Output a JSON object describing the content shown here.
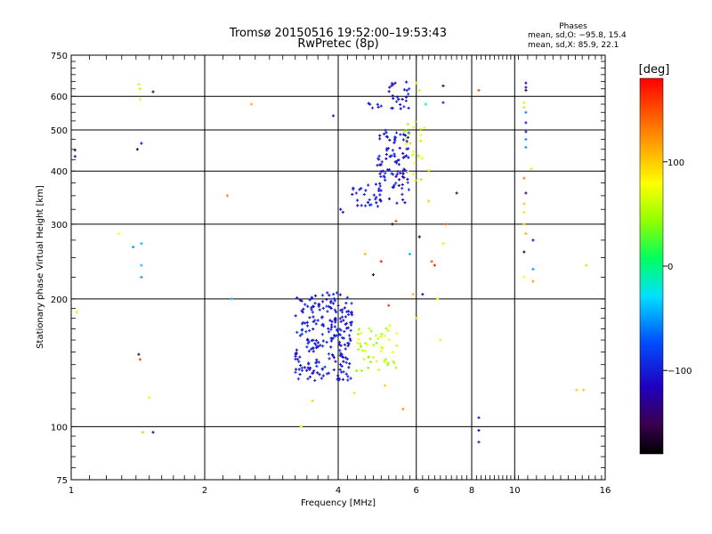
{
  "chart_data": {
    "type": "scatter",
    "title": "Tromsø 20150516 19:52:00–19:53:43",
    "subtitle": "RwPretec (8p)",
    "xlabel": "Frequency [MHz]",
    "ylabel": "Stationary phase Virtual Height [km]",
    "x_scale": "log",
    "y_scale": "log",
    "xlim": [
      1,
      16
    ],
    "ylim": [
      75,
      750
    ],
    "x_ticks": [
      "1",
      "2",
      "4",
      "6",
      "8",
      "10",
      "16"
    ],
    "y_ticks": [
      "75",
      "100",
      "200",
      "300",
      "400",
      "500",
      "600",
      "750"
    ],
    "grid": true,
    "stats": {
      "heading": "Phases",
      "line_o": "mean, sd,O: −95.8, 15.4",
      "line_x": "mean, sd,X:  85.9, 22.1"
    },
    "colorbar": {
      "label": "[deg]",
      "ticks": [
        "100",
        "0",
        "−100"
      ],
      "range": [
        -180,
        180
      ]
    },
    "clusters": [
      {
        "x": [
          3.2,
          4.3
        ],
        "y": [
          128,
          205
        ],
        "phase": [
          -120,
          -85
        ],
        "n": 230
      },
      {
        "x": [
          3.7,
          4.0
        ],
        "y": [
          190,
          210
        ],
        "phase": [
          -110,
          -90
        ],
        "n": 10
      },
      {
        "x": [
          4.4,
          5.5
        ],
        "y": [
          135,
          175
        ],
        "phase": [
          40,
          80
        ],
        "n": 50
      },
      {
        "x": [
          4.9,
          5.8
        ],
        "y": [
          335,
          500
        ],
        "phase": [
          -125,
          -85
        ],
        "n": 100
      },
      {
        "x": [
          4.3,
          5.0
        ],
        "y": [
          330,
          375
        ],
        "phase": [
          -120,
          -85
        ],
        "n": 25
      },
      {
        "x": [
          5.2,
          5.8
        ],
        "y": [
          560,
          650
        ],
        "phase": [
          -120,
          -90
        ],
        "n": 25
      },
      {
        "x": [
          5.6,
          6.4
        ],
        "y": [
          380,
          525
        ],
        "phase": [
          40,
          100
        ],
        "n": 25
      },
      {
        "x": [
          4.6,
          5.0
        ],
        "y": [
          555,
          580
        ],
        "phase": [
          -120,
          -90
        ],
        "n": 6
      }
    ],
    "points": [
      {
        "x": 1.02,
        "y": 448,
        "phase": -150
      },
      {
        "x": 1.02,
        "y": 433,
        "phase": -120
      },
      {
        "x": 1.03,
        "y": 186,
        "phase": 70
      },
      {
        "x": 1.42,
        "y": 640,
        "phase": 90
      },
      {
        "x": 1.43,
        "y": 625,
        "phase": 60
      },
      {
        "x": 1.43,
        "y": 590,
        "phase": 70
      },
      {
        "x": 1.53,
        "y": 615,
        "phase": -150
      },
      {
        "x": 1.41,
        "y": 450,
        "phase": -160
      },
      {
        "x": 1.44,
        "y": 465,
        "phase": -110
      },
      {
        "x": 1.28,
        "y": 285,
        "phase": 80
      },
      {
        "x": 1.38,
        "y": 265,
        "phase": -50
      },
      {
        "x": 1.44,
        "y": 270,
        "phase": -40
      },
      {
        "x": 1.44,
        "y": 240,
        "phase": -40
      },
      {
        "x": 1.44,
        "y": 225,
        "phase": -50
      },
      {
        "x": 1.42,
        "y": 148,
        "phase": -150
      },
      {
        "x": 1.43,
        "y": 144,
        "phase": 160
      },
      {
        "x": 1.5,
        "y": 117,
        "phase": 60
      },
      {
        "x": 1.45,
        "y": 97,
        "phase": 100
      },
      {
        "x": 1.53,
        "y": 97,
        "phase": -150
      },
      {
        "x": 2.25,
        "y": 350,
        "phase": 130
      },
      {
        "x": 2.3,
        "y": 200,
        "phase": -40
      },
      {
        "x": 2.55,
        "y": 575,
        "phase": 110
      },
      {
        "x": 3.3,
        "y": 100,
        "phase": 70
      },
      {
        "x": 3.5,
        "y": 115,
        "phase": 100
      },
      {
        "x": 3.9,
        "y": 540,
        "phase": -110
      },
      {
        "x": 4.05,
        "y": 325,
        "phase": -110
      },
      {
        "x": 4.1,
        "y": 320,
        "phase": -100
      },
      {
        "x": 4.35,
        "y": 120,
        "phase": 90
      },
      {
        "x": 4.6,
        "y": 255,
        "phase": 110
      },
      {
        "x": 4.8,
        "y": 228,
        "phase": -160
      },
      {
        "x": 5.0,
        "y": 245,
        "phase": 170
      },
      {
        "x": 5.1,
        "y": 125,
        "phase": 100
      },
      {
        "x": 5.2,
        "y": 193,
        "phase": 160
      },
      {
        "x": 5.3,
        "y": 300,
        "phase": -170
      },
      {
        "x": 5.4,
        "y": 305,
        "phase": 150
      },
      {
        "x": 5.6,
        "y": 110,
        "phase": 120
      },
      {
        "x": 5.8,
        "y": 255,
        "phase": -40
      },
      {
        "x": 5.9,
        "y": 205,
        "phase": 110
      },
      {
        "x": 6.0,
        "y": 180,
        "phase": 100
      },
      {
        "x": 6.1,
        "y": 280,
        "phase": -160
      },
      {
        "x": 6.2,
        "y": 205,
        "phase": -120
      },
      {
        "x": 6.4,
        "y": 340,
        "phase": 100
      },
      {
        "x": 6.5,
        "y": 245,
        "phase": 150
      },
      {
        "x": 6.6,
        "y": 240,
        "phase": 170
      },
      {
        "x": 6.7,
        "y": 200,
        "phase": 70
      },
      {
        "x": 6.8,
        "y": 160,
        "phase": 70
      },
      {
        "x": 6.9,
        "y": 635,
        "phase": -140
      },
      {
        "x": 6.9,
        "y": 580,
        "phase": -110
      },
      {
        "x": 6.9,
        "y": 270,
        "phase": 90
      },
      {
        "x": 7.0,
        "y": 300,
        "phase": 150
      },
      {
        "x": 7.4,
        "y": 355,
        "phase": -150
      },
      {
        "x": 6.1,
        "y": 620,
        "phase": 60
      },
      {
        "x": 6.3,
        "y": 575,
        "phase": -20
      },
      {
        "x": 6.0,
        "y": 645,
        "phase": 90
      },
      {
        "x": 8.3,
        "y": 620,
        "phase": 150
      },
      {
        "x": 8.3,
        "y": 105,
        "phase": -110
      },
      {
        "x": 8.3,
        "y": 98,
        "phase": -120
      },
      {
        "x": 8.3,
        "y": 92,
        "phase": -100
      },
      {
        "x": 10.6,
        "y": 645,
        "phase": -120
      },
      {
        "x": 10.6,
        "y": 630,
        "phase": -130
      },
      {
        "x": 10.6,
        "y": 620,
        "phase": -150
      },
      {
        "x": 10.5,
        "y": 580,
        "phase": 60
      },
      {
        "x": 10.5,
        "y": 565,
        "phase": 60
      },
      {
        "x": 10.6,
        "y": 550,
        "phase": -60
      },
      {
        "x": 10.6,
        "y": 520,
        "phase": -110
      },
      {
        "x": 10.6,
        "y": 495,
        "phase": -100
      },
      {
        "x": 10.6,
        "y": 475,
        "phase": -60
      },
      {
        "x": 10.6,
        "y": 455,
        "phase": -50
      },
      {
        "x": 10.5,
        "y": 385,
        "phase": 130
      },
      {
        "x": 10.6,
        "y": 355,
        "phase": -140
      },
      {
        "x": 10.5,
        "y": 335,
        "phase": 100
      },
      {
        "x": 10.5,
        "y": 320,
        "phase": 90
      },
      {
        "x": 10.5,
        "y": 300,
        "phase": 100
      },
      {
        "x": 10.6,
        "y": 285,
        "phase": 110
      },
      {
        "x": 10.5,
        "y": 258,
        "phase": -160
      },
      {
        "x": 10.5,
        "y": 225,
        "phase": 80
      },
      {
        "x": 10.9,
        "y": 405,
        "phase": 60
      },
      {
        "x": 11.0,
        "y": 275,
        "phase": -110
      },
      {
        "x": 11.0,
        "y": 235,
        "phase": -50
      },
      {
        "x": 11.0,
        "y": 220,
        "phase": 120
      },
      {
        "x": 13.8,
        "y": 122,
        "phase": 100
      },
      {
        "x": 14.3,
        "y": 122,
        "phase": 100
      },
      {
        "x": 14.5,
        "y": 240,
        "phase": 100
      }
    ]
  }
}
